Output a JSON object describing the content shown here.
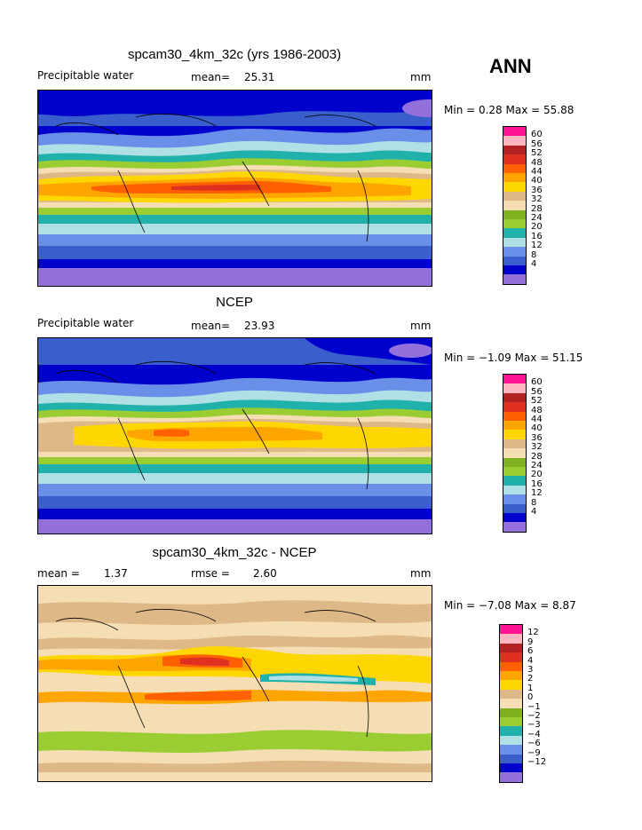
{
  "season": "ANN",
  "colors": {
    "pw": [
      "#9370DB",
      "#0000CD",
      "#3A5FCD",
      "#6A8FE8",
      "#B0E0E6",
      "#20B2AA",
      "#9ACD32",
      "#7FB01F",
      "#F5DEB3",
      "#DEB887",
      "#FFD700",
      "#FFA500",
      "#FF6000",
      "#E03020",
      "#B22222",
      "#FFB6C1",
      "#FF1493"
    ],
    "diff": [
      "#9370DB",
      "#0000CD",
      "#3A5FCD",
      "#6A8FE8",
      "#B0E0E6",
      "#20B2AA",
      "#9ACD32",
      "#7FB01F",
      "#F5DEB3",
      "#DEB887",
      "#FFD700",
      "#FFA500",
      "#FF6000",
      "#E03020",
      "#B22222",
      "#FFB6C1",
      "#FF1493"
    ]
  },
  "panels": [
    {
      "title": "spcam30_4km_32c (yrs 1986-2003)",
      "left_label": "Precipitable water",
      "mean_label": "mean=",
      "mean_value": "25.31",
      "units": "mm",
      "minmax": "Min =   0.28 Max =  55.88",
      "cbar_ticks": [
        "60",
        "56",
        "52",
        "48",
        "44",
        "40",
        "36",
        "32",
        "28",
        "24",
        "20",
        "16",
        "12",
        "8",
        "4"
      ]
    },
    {
      "title": "NCEP",
      "left_label": "Precipitable water",
      "mean_label": "mean=",
      "mean_value": "23.93",
      "units": "mm",
      "minmax": "Min =  −1.09 Max =  51.15",
      "cbar_ticks": [
        "60",
        "56",
        "52",
        "48",
        "44",
        "40",
        "36",
        "32",
        "28",
        "24",
        "20",
        "16",
        "12",
        "8",
        "4"
      ]
    },
    {
      "title": "spcam30_4km_32c - NCEP",
      "left_label": "mean =",
      "left_value": "1.37",
      "mean_label": "rmse =",
      "mean_value": "2.60",
      "units": "mm",
      "minmax": "Min =  −7.08 Max =   8.87",
      "cbar_ticks": [
        "12",
        "9",
        "6",
        "4",
        "3",
        "2",
        "1",
        "0",
        "−1",
        "−2",
        "−3",
        "−4",
        "−6",
        "−9",
        "−12"
      ]
    }
  ]
}
